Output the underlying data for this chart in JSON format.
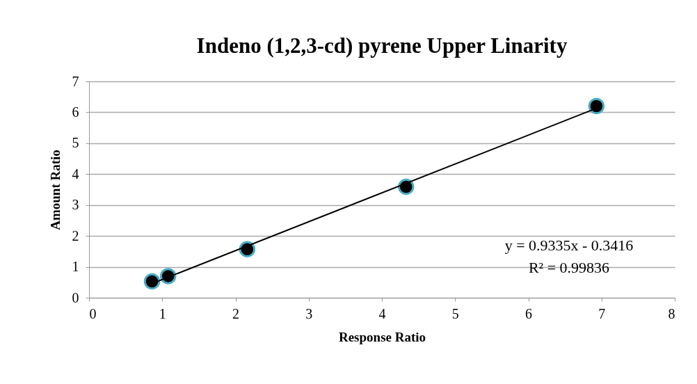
{
  "chart_data": {
    "type": "scatter",
    "title": "Indeno (1,2,3-cd) pyrene Upper Linarity",
    "xlabel": "Response Ratio",
    "ylabel": "Amount Ratio",
    "series": [
      {
        "color": "#000000",
        "marker": "circle",
        "x": [
          0.86,
          1.08,
          2.16,
          4.33,
          6.93
        ],
        "values": [
          0.53,
          0.7,
          1.57,
          3.59,
          6.2
        ]
      },
      {
        "type": "line",
        "color": "#000000",
        "marker": "none",
        "x": [
          0.86,
          6.93
        ],
        "values": [
          0.46,
          6.13
        ]
      }
    ],
    "xlim": [
      0,
      8
    ],
    "xticks": [
      0,
      1,
      2,
      3,
      4,
      5,
      6,
      7,
      8
    ],
    "ylim": [
      0,
      7
    ],
    "yticks": [
      0,
      1,
      2,
      3,
      4,
      5,
      6,
      7
    ],
    "grid": "y",
    "line_style": "solid",
    "annotations": [
      "y = 0.9335x - 0.3416",
      "R² = 0.99836"
    ]
  }
}
